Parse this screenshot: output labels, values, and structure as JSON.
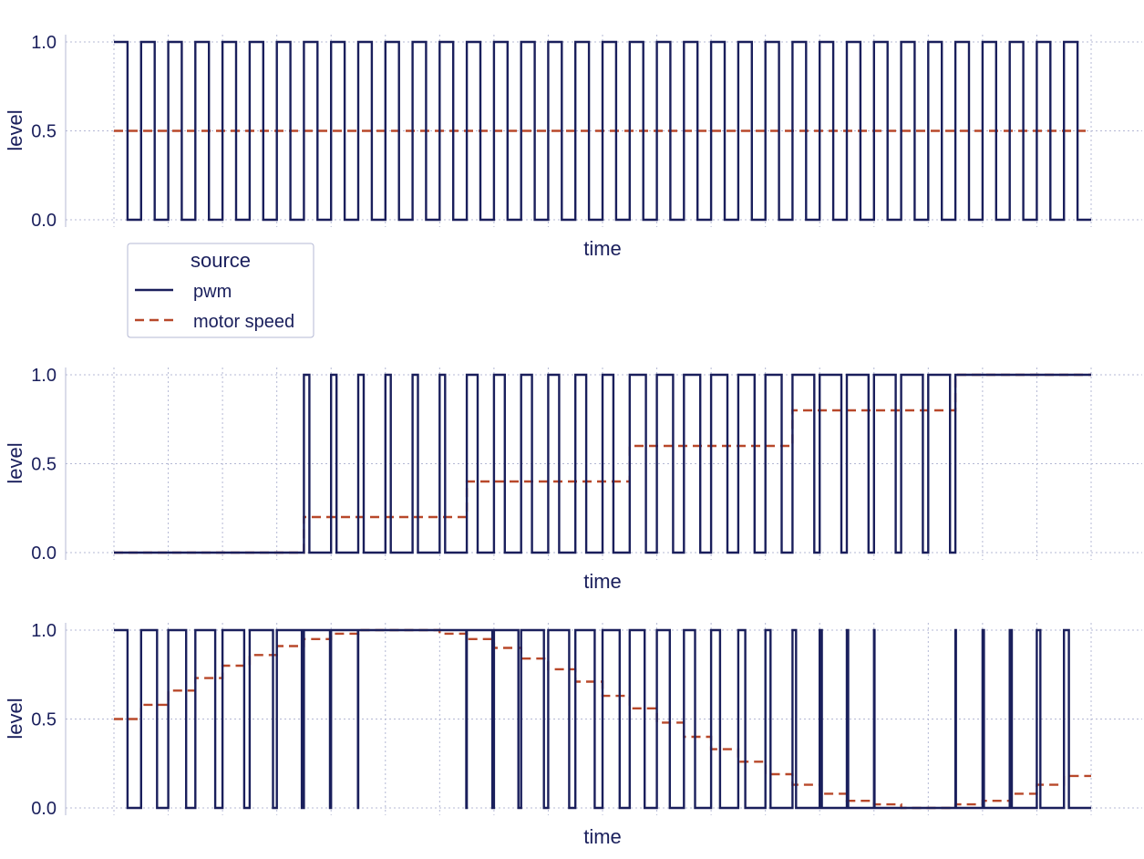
{
  "colors": {
    "pwm": "#1a1f5c",
    "motor_speed": "#b8482a",
    "grid": "#b4b8d4",
    "text": "#1a1f5c"
  },
  "legend": {
    "title": "source",
    "placement": "below first panel, left",
    "items": [
      {
        "label": "pwm",
        "style": "solid"
      },
      {
        "label": "motor speed",
        "style": "dashed"
      }
    ]
  },
  "chart_data": [
    {
      "type": "line",
      "xlabel": "time",
      "ylabel": "level",
      "yticks": [
        "0.0",
        "0.5",
        "1.0"
      ],
      "ylim": [
        0,
        1
      ],
      "xlim": [
        0,
        36
      ],
      "x_tick_labels_shown": false,
      "grid": true,
      "pwm_periods": 36,
      "series": [
        {
          "name": "pwm",
          "style": "square wave",
          "duty_cycle_per_period": [
            0.5,
            0.5,
            0.5,
            0.5,
            0.5,
            0.5,
            0.5,
            0.5,
            0.5,
            0.5,
            0.5,
            0.5,
            0.5,
            0.5,
            0.5,
            0.5,
            0.5,
            0.5,
            0.5,
            0.5,
            0.5,
            0.5,
            0.5,
            0.5,
            0.5,
            0.5,
            0.5,
            0.5,
            0.5,
            0.5,
            0.5,
            0.5,
            0.5,
            0.5,
            0.5,
            0.5
          ]
        },
        {
          "name": "motor speed",
          "style": "dashed",
          "values": [
            0.5,
            0.5,
            0.5,
            0.5,
            0.5,
            0.5,
            0.5,
            0.5,
            0.5,
            0.5,
            0.5,
            0.5,
            0.5,
            0.5,
            0.5,
            0.5,
            0.5,
            0.5,
            0.5,
            0.5,
            0.5,
            0.5,
            0.5,
            0.5,
            0.5,
            0.5,
            0.5,
            0.5,
            0.5,
            0.5,
            0.5,
            0.5,
            0.5,
            0.5,
            0.5,
            0.5
          ]
        }
      ]
    },
    {
      "type": "line",
      "xlabel": "time",
      "ylabel": "level",
      "yticks": [
        "0.0",
        "0.5",
        "1.0"
      ],
      "ylim": [
        0,
        1
      ],
      "xlim": [
        0,
        36
      ],
      "x_tick_labels_shown": false,
      "grid": true,
      "pwm_periods": 36,
      "series": [
        {
          "name": "pwm",
          "style": "square wave",
          "duty_cycle_per_period": [
            0,
            0,
            0,
            0,
            0,
            0,
            0,
            0.2,
            0.2,
            0.2,
            0.2,
            0.2,
            0.2,
            0.4,
            0.4,
            0.4,
            0.4,
            0.4,
            0.4,
            0.6,
            0.6,
            0.6,
            0.6,
            0.6,
            0.6,
            0.8,
            0.8,
            0.8,
            0.8,
            0.8,
            0.8,
            1,
            1,
            1,
            1,
            1
          ]
        },
        {
          "name": "motor speed",
          "style": "dashed",
          "values": [
            0,
            0,
            0,
            0,
            0,
            0,
            0,
            0.2,
            0.2,
            0.2,
            0.2,
            0.2,
            0.2,
            0.4,
            0.4,
            0.4,
            0.4,
            0.4,
            0.4,
            0.6,
            0.6,
            0.6,
            0.6,
            0.6,
            0.6,
            0.8,
            0.8,
            0.8,
            0.8,
            0.8,
            0.8,
            1,
            1,
            1,
            1,
            1
          ]
        }
      ]
    },
    {
      "type": "line",
      "xlabel": "time",
      "ylabel": "level",
      "yticks": [
        "0.0",
        "0.5",
        "1.0"
      ],
      "ylim": [
        0,
        1
      ],
      "xlim": [
        0,
        36
      ],
      "x_tick_labels_shown": false,
      "grid": true,
      "pwm_periods": 36,
      "series": [
        {
          "name": "pwm",
          "style": "square wave",
          "duty_cycle_per_period": [
            0.5,
            0.59,
            0.66,
            0.73,
            0.8,
            0.86,
            0.92,
            0.96,
            0.99,
            1,
            1,
            1,
            0.98,
            0.94,
            0.9,
            0.84,
            0.77,
            0.71,
            0.63,
            0.55,
            0.48,
            0.41,
            0.33,
            0.26,
            0.19,
            0.13,
            0.08,
            0.05,
            0.02,
            0,
            0,
            0.02,
            0.05,
            0.08,
            0.13,
            0.18
          ]
        },
        {
          "name": "motor speed",
          "style": "dashed",
          "values": [
            0.5,
            0.58,
            0.66,
            0.73,
            0.8,
            0.86,
            0.91,
            0.95,
            0.98,
            1,
            1,
            1,
            0.98,
            0.95,
            0.9,
            0.84,
            0.78,
            0.71,
            0.63,
            0.56,
            0.48,
            0.4,
            0.33,
            0.26,
            0.19,
            0.13,
            0.08,
            0.04,
            0.02,
            0,
            0,
            0.02,
            0.04,
            0.08,
            0.13,
            0.18
          ]
        }
      ]
    }
  ]
}
